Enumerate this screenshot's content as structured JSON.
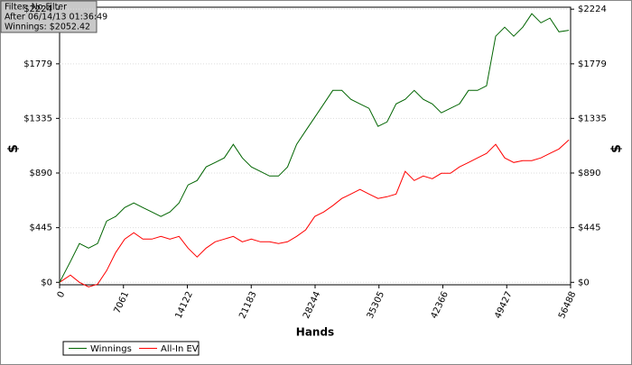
{
  "info_box": [
    "Filter: No Filter",
    "After 06/14/13 01:36:49",
    "Winnings: $2052.42"
  ],
  "chart_data": {
    "type": "line",
    "x_label": "Hands",
    "y_label": "$",
    "y2_label": "$",
    "xlim": [
      0,
      56488
    ],
    "ylim": [
      -20,
      2240
    ],
    "xticks": [
      0,
      7061,
      14122,
      21183,
      28244,
      35305,
      42366,
      49427,
      56488
    ],
    "yticks": [
      {
        "value": 0,
        "label": "$0"
      },
      {
        "value": 445,
        "label": "$445"
      },
      {
        "value": 890,
        "label": "$890"
      },
      {
        "value": 1335,
        "label": "$1335"
      },
      {
        "value": 1779,
        "label": "$1779"
      },
      {
        "value": 2224,
        "label": "$2224"
      }
    ],
    "legend": "bottom-left",
    "x": [
      0,
      1200,
      2200,
      3200,
      4200,
      5200,
      6200,
      7200,
      8200,
      9200,
      10200,
      11200,
      12200,
      13200,
      14200,
      15200,
      16200,
      17200,
      18200,
      19200,
      20200,
      21200,
      22200,
      23200,
      24200,
      25200,
      26200,
      27200,
      28200,
      29200,
      30200,
      31200,
      32200,
      33200,
      34200,
      35200,
      36200,
      37200,
      38200,
      39200,
      40200,
      41200,
      42200,
      43200,
      44200,
      45200,
      46200,
      47200,
      48200,
      49200,
      50200,
      51200,
      52200,
      53200,
      54200,
      55200,
      56300
    ],
    "series": [
      {
        "name": "Winnings",
        "color": "#006400",
        "values": [
          0,
          169,
          316,
          279,
          316,
          499,
          536,
          609,
          646,
          609,
          573,
          536,
          573,
          646,
          793,
          829,
          940,
          976,
          1013,
          1123,
          1013,
          940,
          903,
          866,
          866,
          940,
          1123,
          1233,
          1343,
          1453,
          1563,
          1563,
          1490,
          1453,
          1417,
          1270,
          1306,
          1453,
          1490,
          1563,
          1490,
          1453,
          1380,
          1417,
          1453,
          1563,
          1563,
          1600,
          2004,
          2077,
          2004,
          2077,
          2187,
          2113,
          2151,
          2040,
          2052
        ]
      },
      {
        "name": "All-In EV",
        "color": "#ff0000",
        "values": [
          0,
          59,
          0,
          -37,
          -15,
          95,
          242,
          352,
          404,
          352,
          352,
          374,
          352,
          374,
          279,
          206,
          279,
          330,
          352,
          374,
          330,
          352,
          330,
          330,
          316,
          330,
          374,
          426,
          536,
          573,
          624,
          683,
          719,
          756,
          719,
          683,
          697,
          719,
          903,
          829,
          866,
          844,
          888,
          888,
          940,
          976,
          1013,
          1050,
          1123,
          1013,
          976,
          991,
          991,
          1013,
          1050,
          1086,
          1160
        ]
      }
    ]
  }
}
